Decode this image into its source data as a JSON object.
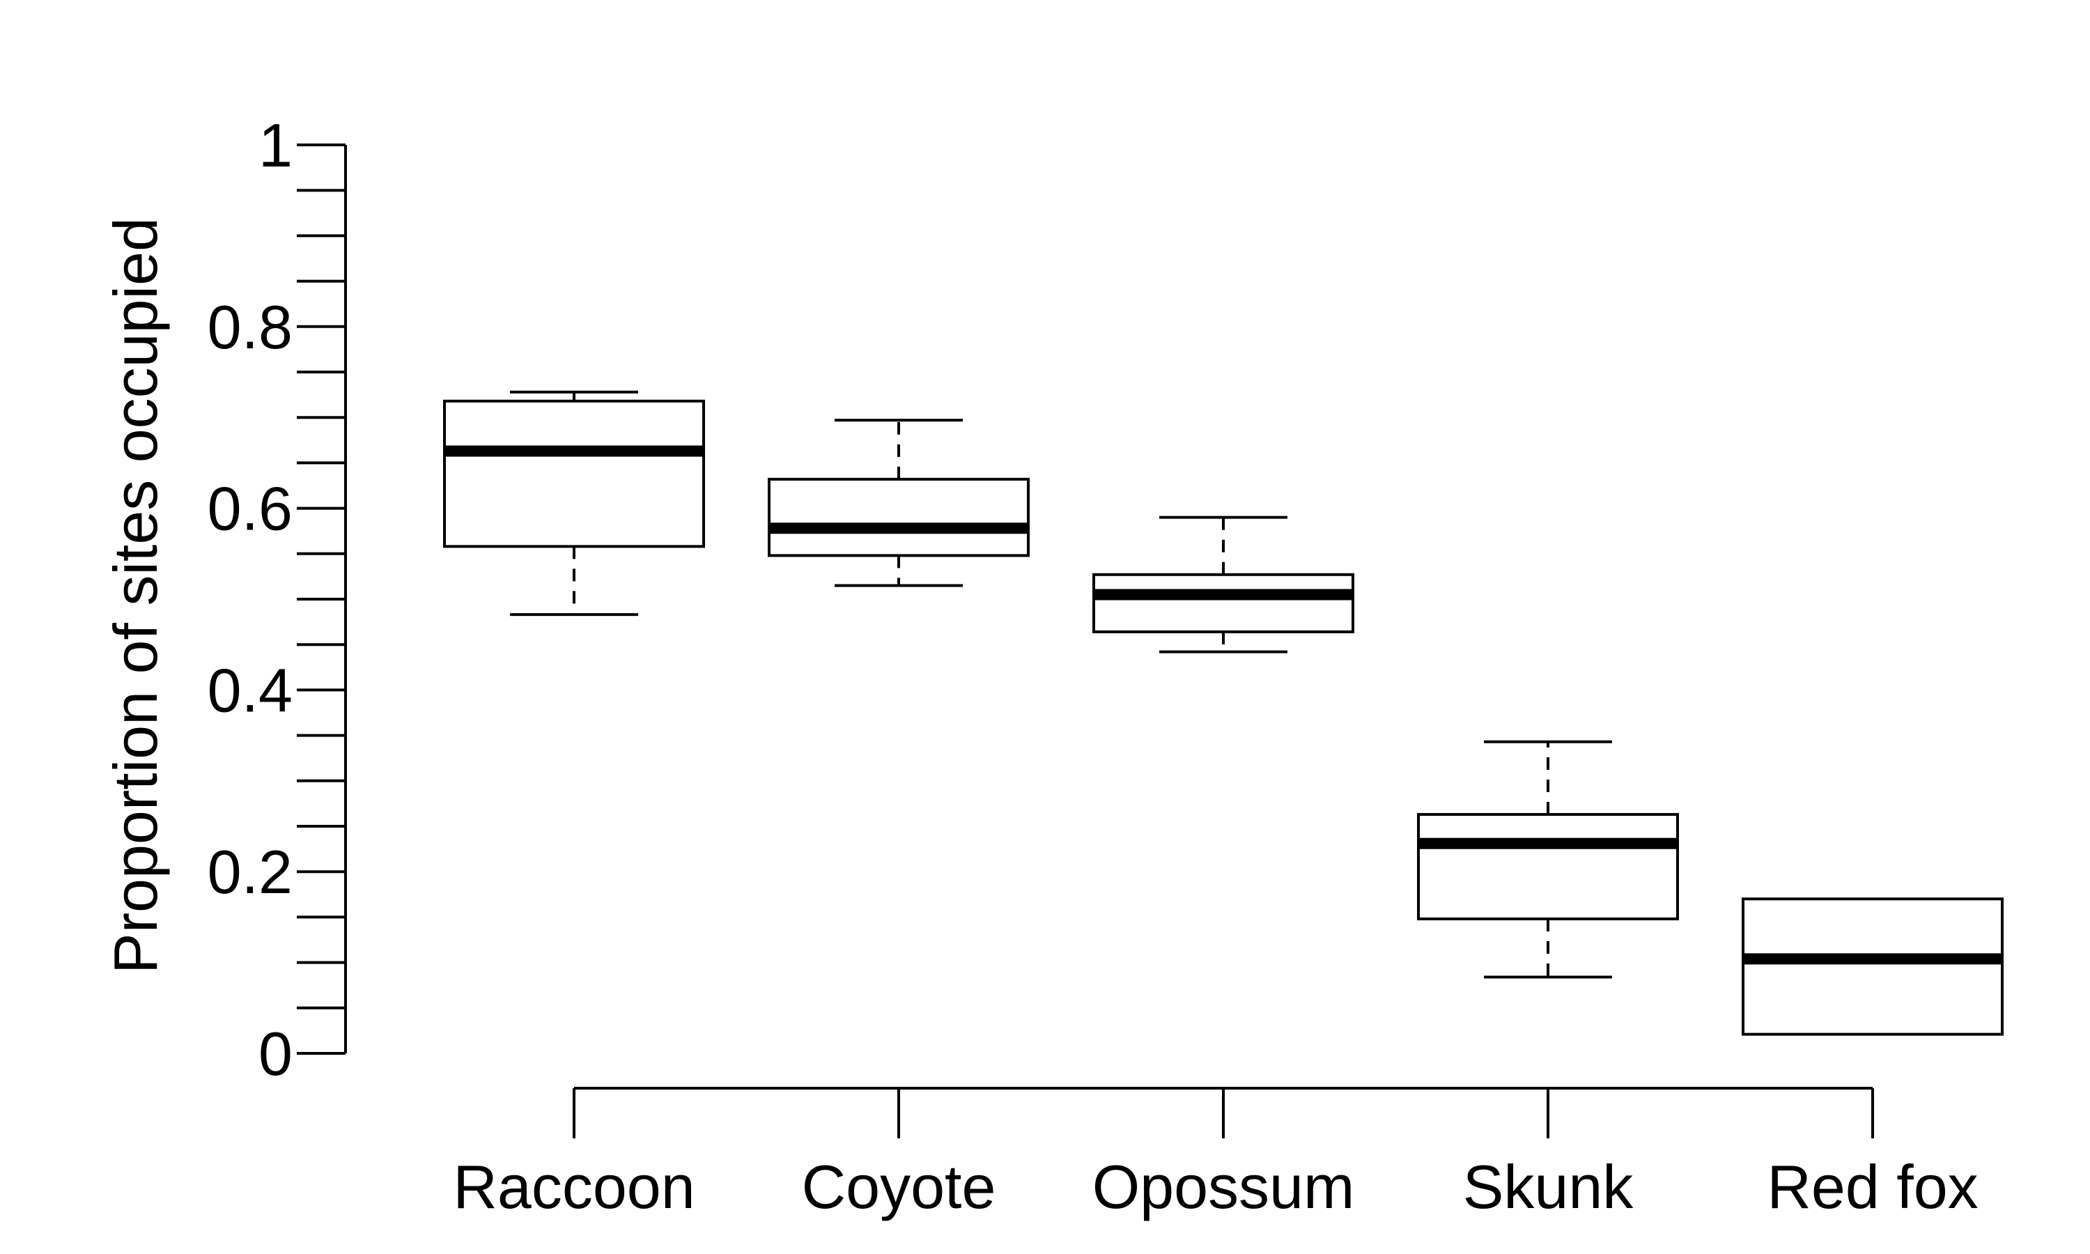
{
  "chart_data": {
    "type": "box",
    "title": "",
    "xlabel": "",
    "ylabel": "Proportion of sites occupied",
    "ylim": [
      0,
      1
    ],
    "y_ticks_major": [
      0,
      0.2,
      0.4,
      0.6,
      0.8,
      1
    ],
    "y_tick_labels": [
      "0",
      "0.2",
      "0.4",
      "0.6",
      "0.8",
      "1"
    ],
    "y_tick_minor_step": 0.05,
    "grid": false,
    "legend": "none",
    "categories": [
      "Raccoon",
      "Coyote",
      "Opossum",
      "Skunk",
      "Red fox"
    ],
    "boxes": [
      {
        "whisker_low": 0.483,
        "q1": 0.558,
        "median": 0.663,
        "q3": 0.718,
        "whisker_high": 0.728
      },
      {
        "whisker_low": 0.515,
        "q1": 0.548,
        "median": 0.578,
        "q3": 0.632,
        "whisker_high": 0.697
      },
      {
        "whisker_low": 0.442,
        "q1": 0.464,
        "median": 0.505,
        "q3": 0.527,
        "whisker_high": 0.59
      },
      {
        "whisker_low": 0.084,
        "q1": 0.148,
        "median": 0.231,
        "q3": 0.263,
        "whisker_high": 0.343
      },
      {
        "whisker_low": 0.021,
        "q1": 0.021,
        "median": 0.104,
        "q3": 0.17,
        "whisker_high": 0.17
      }
    ]
  }
}
